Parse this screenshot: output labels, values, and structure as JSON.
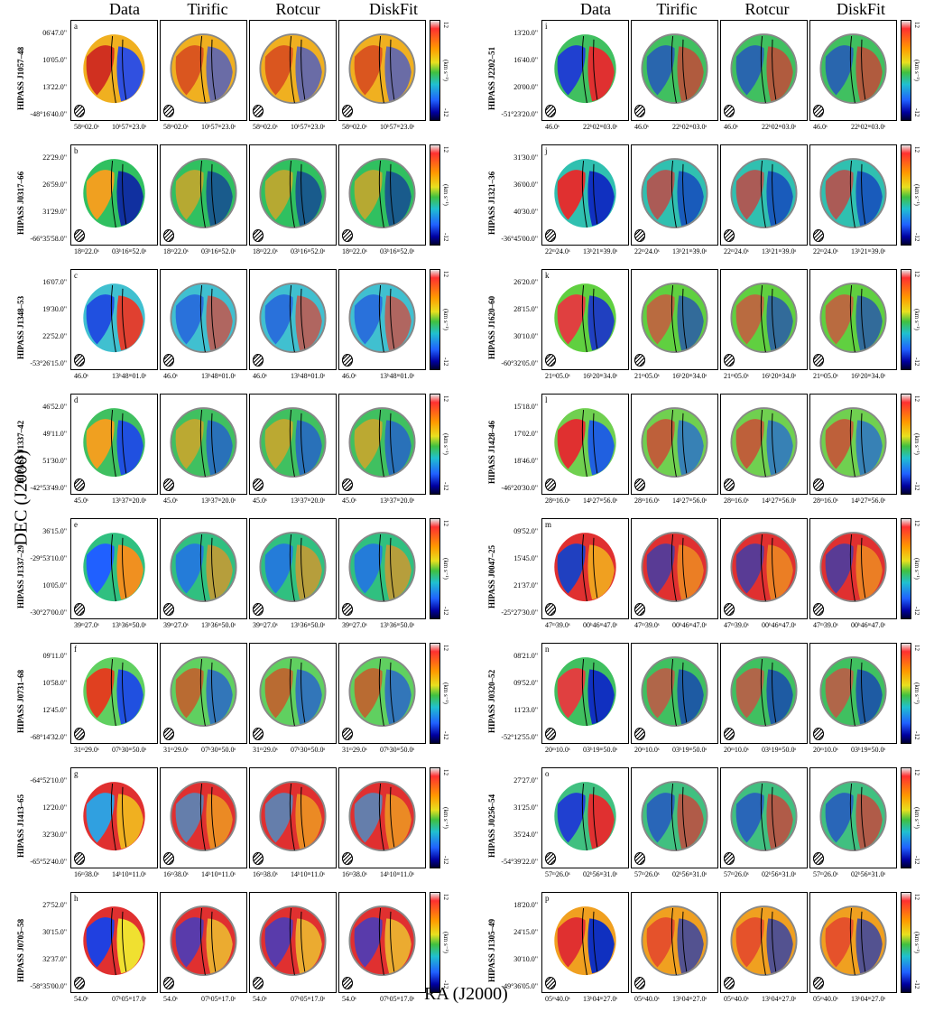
{
  "columns": [
    "Data",
    "Tirific",
    "Rotcur",
    "DiskFit"
  ],
  "axis": {
    "y_title": "DEC (J2000)",
    "x_title": "RA (J2000)"
  },
  "colorbar": {
    "max": "12",
    "min": "-12",
    "unit": "(km s⁻¹)"
  },
  "left": [
    {
      "letter": "a",
      "name": "HIPASS J1057–48",
      "dec": [
        "06'47.0\"",
        "10'05.0\"",
        "13'22.0\"",
        "-48°16'40.0\""
      ],
      "ra": [
        "58ᵐ02.0ˢ",
        "10ʰ57ᵐ23.0ˢ"
      ],
      "colors": [
        "#d03020",
        "#3050e0",
        "#f0b020"
      ]
    },
    {
      "letter": "b",
      "name": "HIPASS J0317–66",
      "dec": [
        "22'29.0\"",
        "26'59.0\"",
        "31'29.0\"",
        "-66°35'58.0\""
      ],
      "ra": [
        "18ᵐ22.0ˢ",
        "03ʰ16ᵐ52.0ˢ"
      ],
      "colors": [
        "#f0a020",
        "#1030a0",
        "#30c060"
      ]
    },
    {
      "letter": "c",
      "name": "HIPASS J1348–53",
      "dec": [
        "16'07.0\"",
        "19'30.0\"",
        "22'52.0\"",
        "-53°26'15.0\""
      ],
      "ra": [
        "46.0ˢ",
        "13ʰ48ᵐ01.0ˢ"
      ],
      "colors": [
        "#2050e0",
        "#e04030",
        "#40c0d0"
      ]
    },
    {
      "letter": "d",
      "name": "HIPASS J1337–42",
      "dec": [
        "46'52.0\"",
        "49'11.0\"",
        "51'30.0\"",
        "-42°53'49.0\""
      ],
      "ra": [
        "45.0ˢ",
        "13ʰ37ᵐ20.0ˢ"
      ],
      "colors": [
        "#f0a020",
        "#2050e0",
        "#40c060"
      ]
    },
    {
      "letter": "e",
      "name": "HIPASS J1337–29",
      "dec": [
        "36'15.0\"",
        "-29°53'10.0\"",
        "10'05.0\"",
        "-30°27'00.0\""
      ],
      "ra": [
        "39ᵐ27.0ˢ",
        "13ʰ36ᵐ50.0ˢ"
      ],
      "colors": [
        "#2060ff",
        "#f09020",
        "#30c080"
      ]
    },
    {
      "letter": "f",
      "name": "HIPASS J0731–68",
      "dec": [
        "09'11.0\"",
        "10'58.0\"",
        "12'45.0\"",
        "-68°14'32.0\""
      ],
      "ra": [
        "31ᵐ29.0ˢ",
        "07ʰ30ᵐ50.0ˢ"
      ],
      "colors": [
        "#e04020",
        "#2050e0",
        "#60d060"
      ]
    },
    {
      "letter": "g",
      "name": "HIPASS J1413–65",
      "dec": [
        "-64°52'10.0\"",
        "12'20.0\"",
        "32'30.0\"",
        "-65°52'40.0\""
      ],
      "ra": [
        "16ᵐ38.0ˢ",
        "14ʰ10ᵐ11.0ˢ"
      ],
      "colors": [
        "#30a0e0",
        "#f0b020",
        "#e03030"
      ]
    },
    {
      "letter": "h",
      "name": "HIPASS J0705–58",
      "dec": [
        "27'52.0\"",
        "30'15.0\"",
        "32'37.0\"",
        "-58°35'00.0\""
      ],
      "ra": [
        "54.0ˢ",
        "07ʰ05ᵐ17.0ˢ"
      ],
      "colors": [
        "#2040e0",
        "#f0e030",
        "#e03030"
      ]
    }
  ],
  "right": [
    {
      "letter": "i",
      "name": "HIPASS J2202–51",
      "dec": [
        "13'20.0\"",
        "16'40.0\"",
        "20'00.0\"",
        "-51°23'20.0\""
      ],
      "ra": [
        "46.0ˢ",
        "22ʰ02ᵐ03.0ˢ"
      ],
      "colors": [
        "#2040d0",
        "#e03030",
        "#40c060"
      ]
    },
    {
      "letter": "j",
      "name": "HIPASS J1321–36",
      "dec": [
        "31'30.0\"",
        "36'00.0\"",
        "40'30.0\"",
        "-36°45'00.0\""
      ],
      "ra": [
        "22ᵐ24.0ˢ",
        "13ʰ21ᵐ39.0ˢ"
      ],
      "colors": [
        "#e03030",
        "#1030c0",
        "#30c0b0"
      ]
    },
    {
      "letter": "k",
      "name": "HIPASS J1620–60",
      "dec": [
        "26'20.0\"",
        "28'15.0\"",
        "30'10.0\"",
        "-60°32'05.0\""
      ],
      "ra": [
        "21ᵐ05.0ˢ",
        "16ʰ20ᵐ34.0ˢ"
      ],
      "colors": [
        "#e04040",
        "#2040c0",
        "#60d040"
      ]
    },
    {
      "letter": "l",
      "name": "HIPASS J1428–46",
      "dec": [
        "15'18.0\"",
        "17'02.0\"",
        "18'46.0\"",
        "-46°20'30.0\""
      ],
      "ra": [
        "28ᵐ16.0ˢ",
        "14ʰ27ᵐ56.0ˢ"
      ],
      "colors": [
        "#e03030",
        "#2060e0",
        "#70d050"
      ]
    },
    {
      "letter": "m",
      "name": "HIPASS J0047–25",
      "dec": [
        "09'52.0\"",
        "15'45.0\"",
        "21'37.0\"",
        "-25°27'30.0\""
      ],
      "ra": [
        "47ᵐ39.0ˢ",
        "00ʰ46ᵐ47.0ˢ"
      ],
      "colors": [
        "#2040c0",
        "#f0a020",
        "#e03030"
      ]
    },
    {
      "letter": "n",
      "name": "HIPASS J0320–52",
      "dec": [
        "08'21.0\"",
        "09'52.0\"",
        "11'23.0\"",
        "-52°12'55.0\""
      ],
      "ra": [
        "20ᵐ10.0ˢ",
        "03ʰ19ᵐ50.0ˢ"
      ],
      "colors": [
        "#e04040",
        "#1030c0",
        "#40c060"
      ]
    },
    {
      "letter": "o",
      "name": "HIPASS J0256–54",
      "dec": [
        "27'27.0\"",
        "31'25.0\"",
        "35'24.0\"",
        "-54°39'22.0\""
      ],
      "ra": [
        "57ᵐ26.0ˢ",
        "02ʰ56ᵐ31.0ˢ"
      ],
      "colors": [
        "#2040d0",
        "#e03030",
        "#40c080"
      ]
    },
    {
      "letter": "p",
      "name": "HIPASS J1305–49",
      "dec": [
        "18'20.0\"",
        "24'15.0\"",
        "30'10.0\"",
        "-49°36'05.0\""
      ],
      "ra": [
        "05ᵐ40.0ˢ",
        "13ʰ04ᵐ27.0ˢ"
      ],
      "colors": [
        "#e03030",
        "#1030c0",
        "#f0a020"
      ]
    }
  ]
}
